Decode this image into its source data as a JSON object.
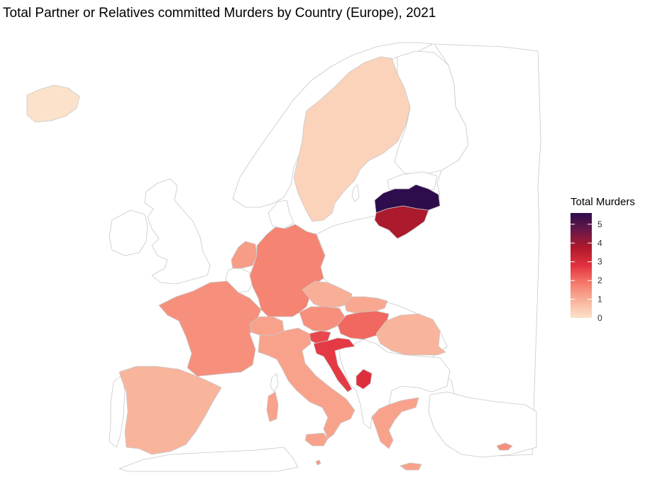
{
  "chart_data": {
    "type": "choropleth map",
    "title": "Total Partner or Relatives committed Murders by Country (Europe), 2021",
    "legend": {
      "title": "Total Murders",
      "placement": "right",
      "ticks": [
        0,
        1,
        2,
        3,
        4,
        5
      ],
      "range": [
        0,
        5.6
      ],
      "gradient_colors": [
        "#FCE2CB",
        "#F9B29A",
        "#F47A6A",
        "#E3313F",
        "#B01A2B",
        "#6B1848",
        "#2E0D4C"
      ]
    },
    "no_data_color": "#FFFFFF",
    "regions": [
      {
        "name": "Iceland",
        "value": 0
      },
      {
        "name": "Sweden",
        "value": 0.3
      },
      {
        "name": "Latvia",
        "value": 5.6
      },
      {
        "name": "Lithuania",
        "value": 3.8
      },
      {
        "name": "Netherlands",
        "value": 1.3
      },
      {
        "name": "Germany",
        "value": 1.7
      },
      {
        "name": "France",
        "value": 1.5
      },
      {
        "name": "Spain",
        "value": 0.9
      },
      {
        "name": "Czechia",
        "value": 1.0
      },
      {
        "name": "Slovakia",
        "value": 1.1
      },
      {
        "name": "Austria",
        "value": 1.5
      },
      {
        "name": "Switzerland",
        "value": 1.2
      },
      {
        "name": "Italy",
        "value": 1.2
      },
      {
        "name": "Slovenia",
        "value": 2.5
      },
      {
        "name": "Hungary",
        "value": 2.1
      },
      {
        "name": "Croatia",
        "value": 2.7
      },
      {
        "name": "Montenegro",
        "value": 2.9
      },
      {
        "name": "Romania",
        "value": 0.9
      },
      {
        "name": "Greece",
        "value": 1.2
      },
      {
        "name": "Malta",
        "value": 1.3
      },
      {
        "name": "Cyprus",
        "value": 1.5
      }
    ]
  }
}
